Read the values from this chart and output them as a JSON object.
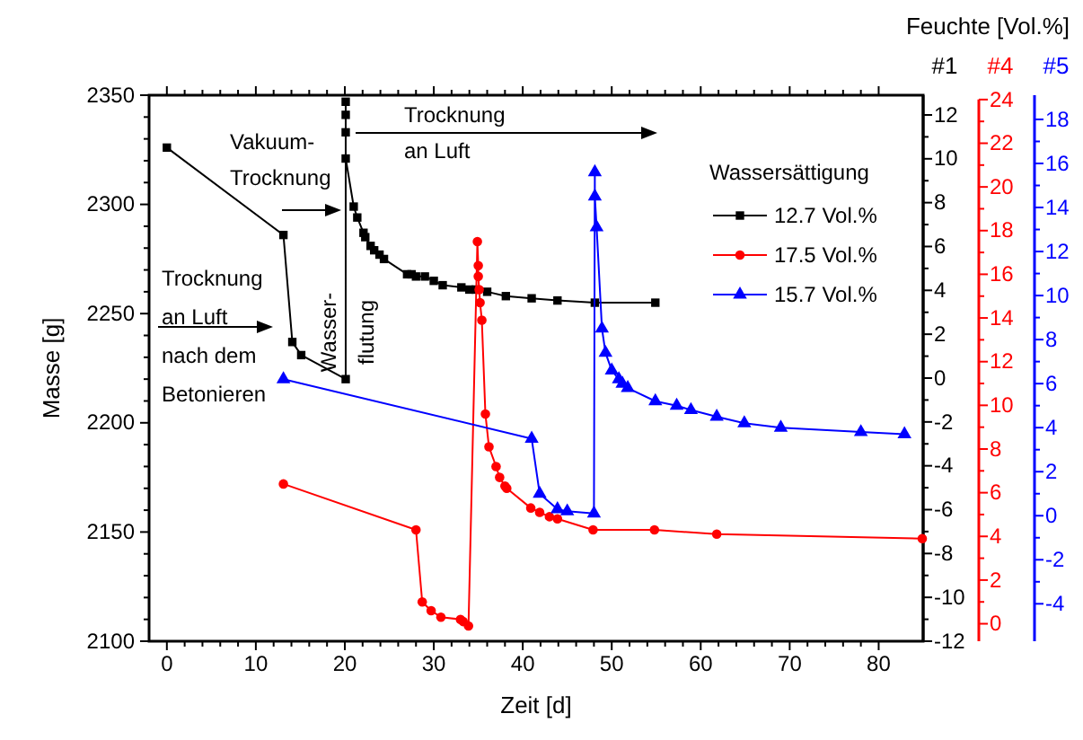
{
  "chart_data": [
    {
      "type": "line",
      "xlabel": "Zeit [d]",
      "ylabel": "Masse [g]",
      "y2label": "#1",
      "y3label": "#4",
      "legend_title": "Wassersättigung",
      "legend": "right",
      "grid": false,
      "xlim": [
        -2,
        85
      ],
      "xticks": [
        0,
        10,
        20,
        30,
        40,
        50,
        60,
        70,
        80
      ],
      "ylim": [
        2100,
        2350
      ],
      "yticks": [
        2100,
        2150,
        2200,
        2250,
        2300,
        2350
      ],
      "y2lim": [
        -12,
        12.9
      ],
      "y2ticks": [
        -12,
        -10,
        -8,
        -6,
        -4,
        -2,
        0,
        2,
        4,
        6,
        8,
        10,
        12
      ],
      "y3lim": [
        -0.8,
        24.2
      ],
      "y3ticks": [
        0,
        2,
        4,
        6,
        8,
        10,
        12,
        14,
        16,
        18,
        20,
        22,
        24
      ],
      "series": [
        {
          "name": "12.7 Vol.%",
          "color": "#000000",
          "marker": "square",
          "x": [
            0,
            13.1,
            14.1,
            15.1,
            20.1,
            20.1,
            20.1,
            20.1,
            20.1,
            21.0,
            21.4,
            22.1,
            22.3,
            22.9,
            23.3,
            23.9,
            24.4,
            27.0,
            27.5,
            28.0,
            29.0,
            30.0,
            31.0,
            33.1,
            34.0,
            34.7,
            36.0,
            38.1,
            41.0,
            43.9,
            48.1,
            54.9
          ],
          "values": [
            2326,
            2286,
            2237,
            2231,
            2220,
            2347,
            2341,
            2333,
            2321,
            2299,
            2294,
            2287,
            2285,
            2281,
            2279,
            2277,
            2275,
            2268,
            2268,
            2267,
            2267,
            2265,
            2263,
            2262,
            2261,
            2261,
            2260,
            2258,
            2257,
            2256,
            2255,
            2255
          ]
        },
        {
          "name": "17.5 Vol.%",
          "color": "#ff0000",
          "marker": "circle",
          "x": [
            13.1,
            28.0,
            28.7,
            29.7,
            30.8,
            33.0,
            33.3,
            33.9,
            34.9,
            35.0,
            35.0,
            35.1,
            35.2,
            35.4,
            35.8,
            36.2,
            37.0,
            37.4,
            38.0,
            38.2,
            40.9,
            41.9,
            43.0,
            43.9,
            47.9,
            54.8,
            61.8,
            84.9
          ],
          "values": [
            2172,
            2151,
            2118,
            2114,
            2111,
            2110,
            2109,
            2107,
            2283,
            2272,
            2267,
            2261,
            2255,
            2247,
            2204,
            2189,
            2180,
            2175,
            2171,
            2170,
            2161,
            2159,
            2157,
            2156,
            2151,
            2151,
            2149,
            2147
          ]
        }
      ],
      "annotations": [
        "Vakuum-\nTrocknung",
        "Trocknung\nan Luft\nnach dem\nBetonieren",
        "Wasser-\nflutung",
        "Trocknung\nan Luft",
        "Feuchte [Vol.%]"
      ]
    },
    {
      "type": "line",
      "ylabel": "#5",
      "tick_labels": "y",
      "xlim": [
        -2,
        85
      ],
      "ylim": [
        -5.7,
        19.1
      ],
      "yticks": [
        -4,
        -2,
        0,
        2,
        4,
        6,
        8,
        10,
        12,
        14,
        16,
        18
      ],
      "series": [
        {
          "name": "15.7 Vol.%",
          "color": "#0000ff",
          "marker": "triangle",
          "x": [
            13.1,
            41.0,
            41.9,
            43.9,
            45.0,
            48.0,
            48.1,
            48.1,
            48.3,
            48.9,
            49.3,
            50.0,
            50.8,
            51.2,
            51.8,
            54.9,
            57.3,
            58.9,
            61.8,
            64.9,
            69.0,
            78.0,
            82.9
          ],
          "values": [
            6.2,
            3.5,
            1.0,
            0.3,
            0.2,
            0.1,
            15.6,
            14.5,
            13.1,
            8.5,
            7.4,
            6.6,
            6.2,
            6.0,
            5.8,
            5.2,
            5.0,
            4.8,
            4.5,
            4.2,
            4.0,
            3.8,
            3.7
          ]
        }
      ]
    }
  ]
}
